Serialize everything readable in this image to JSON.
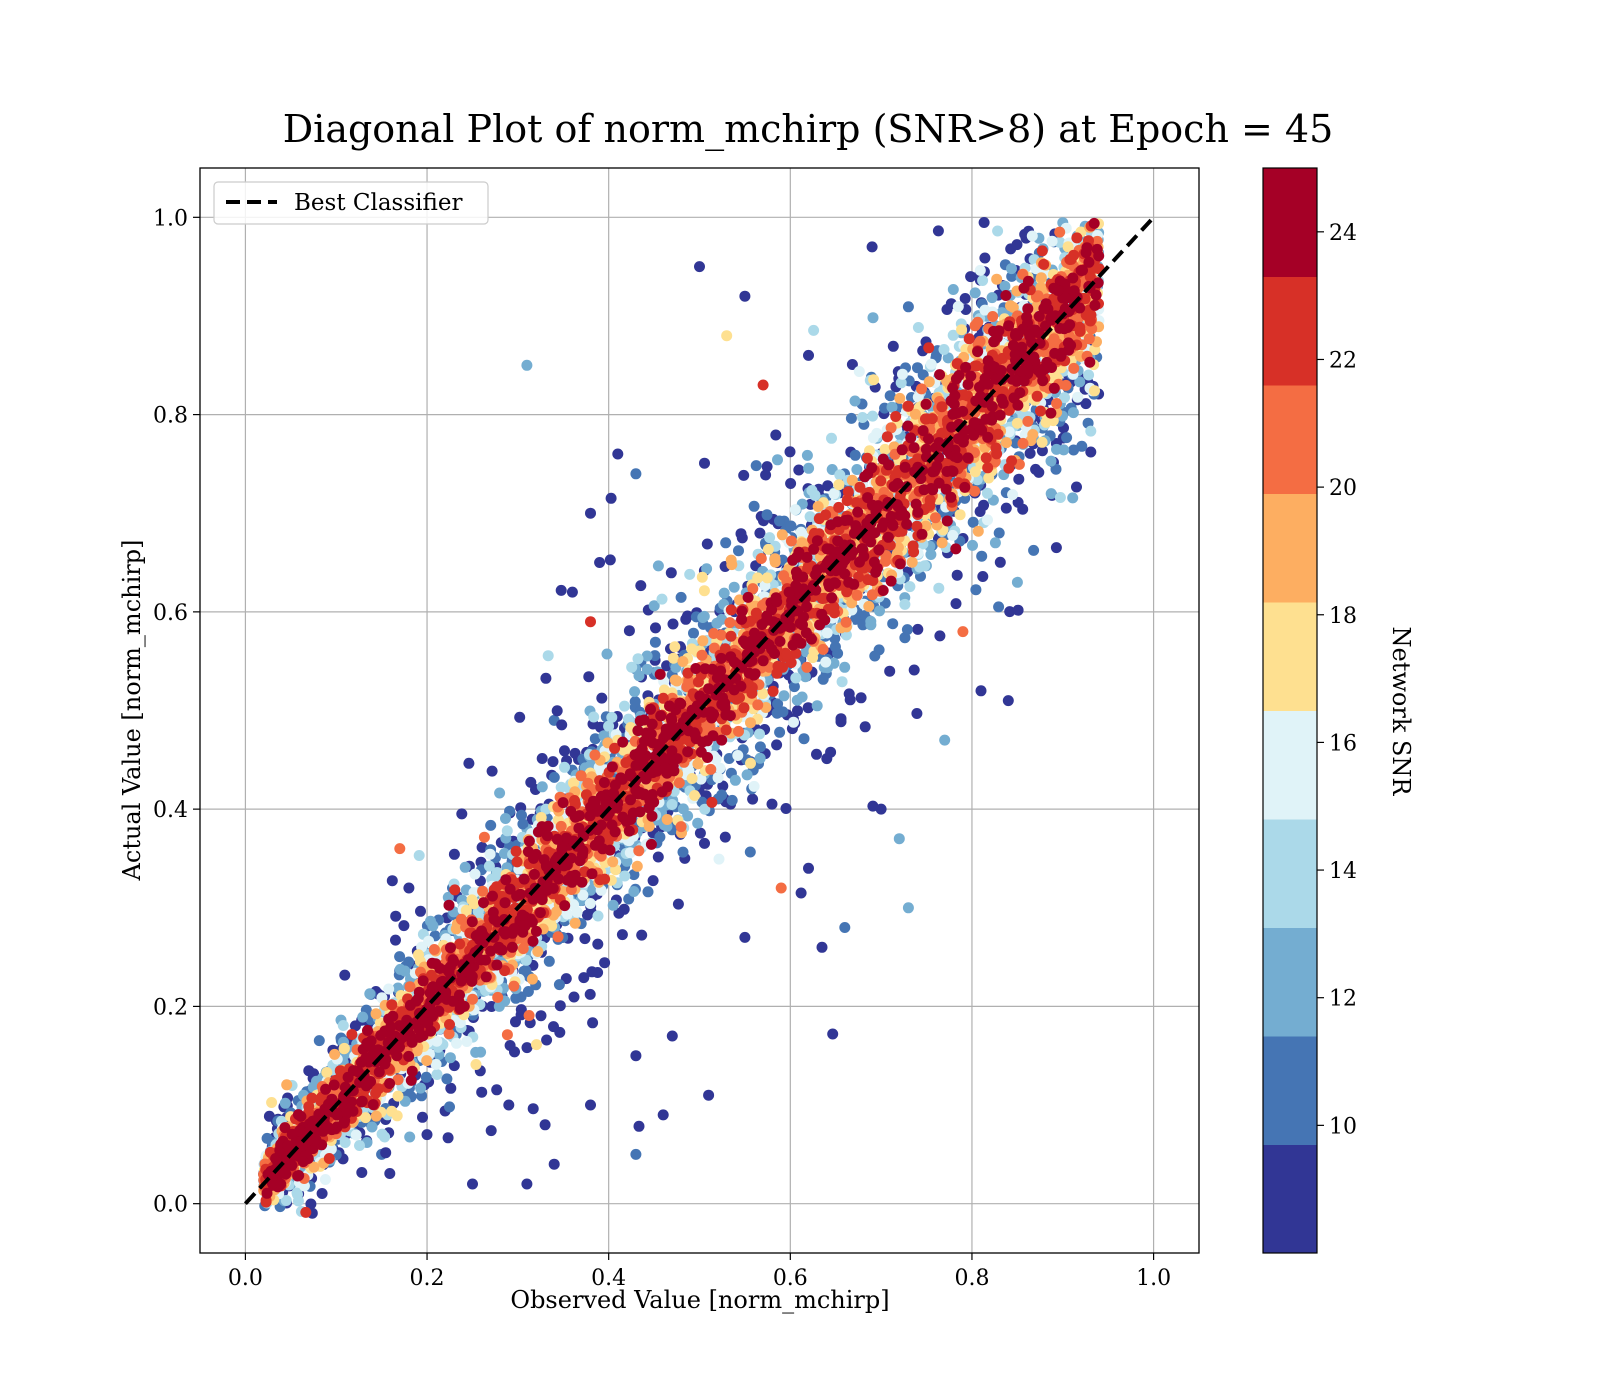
{
  "chart_data": {
    "type": "scatter",
    "title": "Diagonal Plot of norm_mchirp (SNR>8) at Epoch = 45",
    "xlabel": "Observed Value [norm_mchirp]",
    "ylabel": "Actual Value [norm_mchirp]",
    "xlim": [
      -0.05,
      1.05
    ],
    "ylim": [
      -0.05,
      1.05
    ],
    "xticks": [
      "0.0",
      "0.2",
      "0.4",
      "0.6",
      "0.8",
      "1.0"
    ],
    "yticks": [
      "0.0",
      "0.2",
      "0.4",
      "0.6",
      "0.8",
      "1.0"
    ],
    "grid": true,
    "legend": {
      "placement": "upper-left",
      "entries": [
        "Best Classifier"
      ]
    },
    "reference_line": {
      "name": "Best Classifier",
      "style": "dashed",
      "color": "#000000",
      "x": [
        0,
        1
      ],
      "y": [
        0,
        1
      ]
    },
    "colorbar": {
      "label": "Network SNR",
      "range": [
        8,
        25
      ],
      "ticks": [
        "10",
        "12",
        "14",
        "16",
        "18",
        "20",
        "22",
        "24"
      ],
      "colors": [
        "#313695",
        "#4575b4",
        "#74add1",
        "#abd9e9",
        "#e0f3f8",
        "#fee090",
        "#fdae61",
        "#f46d43",
        "#d73027",
        "#a50026"
      ]
    },
    "points_sample": [
      [
        0.5,
        0.95,
        9
      ],
      [
        0.55,
        0.92,
        9
      ],
      [
        0.69,
        0.97,
        9
      ],
      [
        0.31,
        0.85,
        12
      ],
      [
        0.62,
        0.86,
        9
      ],
      [
        0.53,
        0.88,
        17
      ],
      [
        0.57,
        0.83,
        23
      ],
      [
        0.41,
        0.76,
        9
      ],
      [
        0.43,
        0.74,
        11
      ],
      [
        0.38,
        0.7,
        9
      ],
      [
        0.36,
        0.62,
        9
      ],
      [
        0.39,
        0.65,
        9
      ],
      [
        0.34,
        0.49,
        10
      ],
      [
        0.38,
        0.59,
        23
      ],
      [
        0.31,
        0.38,
        13
      ],
      [
        0.18,
        0.32,
        9
      ],
      [
        0.17,
        0.36,
        21
      ],
      [
        0.23,
        0.14,
        9
      ],
      [
        0.29,
        0.1,
        9
      ],
      [
        0.25,
        0.02,
        9
      ],
      [
        0.31,
        0.02,
        9
      ],
      [
        0.34,
        0.04,
        9
      ],
      [
        0.43,
        0.05,
        10
      ],
      [
        0.46,
        0.09,
        9
      ],
      [
        0.47,
        0.17,
        9
      ],
      [
        0.51,
        0.11,
        9
      ],
      [
        0.43,
        0.15,
        9
      ],
      [
        0.38,
        0.1,
        9
      ],
      [
        0.33,
        0.08,
        9
      ],
      [
        0.2,
        0.07,
        9
      ],
      [
        0.15,
        0.05,
        10
      ],
      [
        0.66,
        0.28,
        10
      ],
      [
        0.73,
        0.3,
        12
      ],
      [
        0.84,
        0.51,
        9
      ],
      [
        0.81,
        0.52,
        9
      ],
      [
        0.79,
        0.58,
        21
      ],
      [
        0.77,
        0.47,
        12
      ],
      [
        0.59,
        0.32,
        21
      ],
      [
        0.55,
        0.27,
        9
      ],
      [
        0.62,
        0.34,
        9
      ],
      [
        0.7,
        0.4,
        9
      ],
      [
        0.72,
        0.37,
        12
      ],
      [
        0.85,
        0.63,
        12
      ],
      [
        0.83,
        0.68,
        10
      ]
    ]
  }
}
